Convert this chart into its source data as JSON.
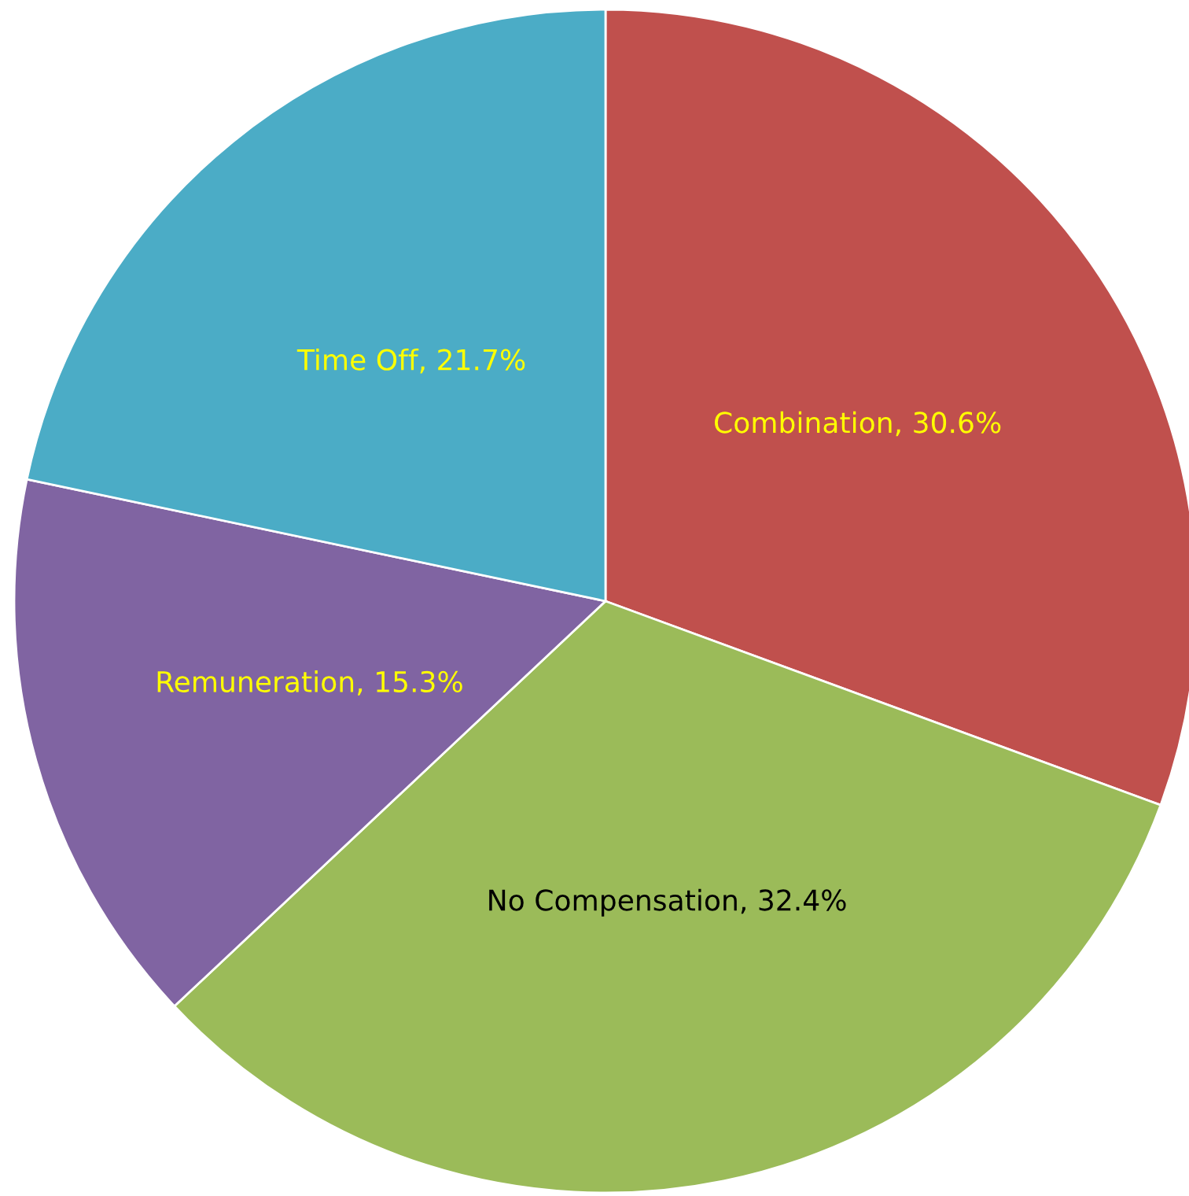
{
  "chart_data": {
    "type": "pie",
    "categories": [
      "Combination",
      "No Compensation",
      "Remuneration",
      "Time Off"
    ],
    "values": [
      30.6,
      32.4,
      15.3,
      21.7
    ],
    "colors": [
      "#c0504d",
      "#9bbb59",
      "#8064a2",
      "#4bacc6"
    ],
    "value_labels": [
      "30.6%",
      "32.4%",
      "15.3%",
      "21.7%"
    ]
  }
}
